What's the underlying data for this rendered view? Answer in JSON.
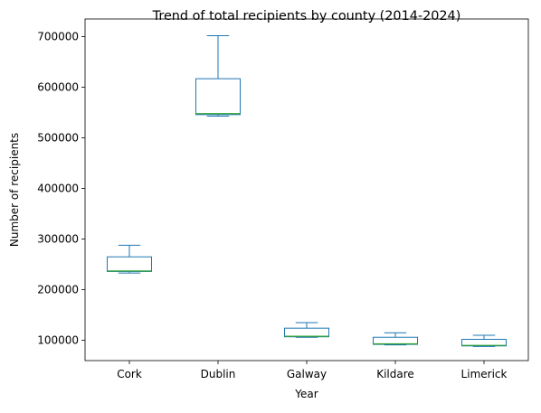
{
  "chart_data": {
    "type": "box",
    "title": "Trend of total recipients by county (2014-2024)",
    "xlabel": "Year",
    "ylabel": "Number of recipients",
    "categories": [
      "Cork",
      "Dublin",
      "Galway",
      "Kildare",
      "Limerick"
    ],
    "boxes": [
      {
        "name": "Cork",
        "min": 233000,
        "q1": 236000,
        "median": 237000,
        "q3": 265000,
        "max": 288000
      },
      {
        "name": "Dublin",
        "min": 543000,
        "q1": 546000,
        "median": 548000,
        "q3": 617000,
        "max": 702000
      },
      {
        "name": "Galway",
        "min": 106000,
        "q1": 107000,
        "median": 108000,
        "q3": 124000,
        "max": 135000
      },
      {
        "name": "Kildare",
        "min": 91000,
        "q1": 92000,
        "median": 93000,
        "q3": 106000,
        "max": 115000
      },
      {
        "name": "Limerick",
        "min": 88000,
        "q1": 89000,
        "median": 90000,
        "q3": 102000,
        "max": 110000
      }
    ],
    "yticks": [
      100000,
      200000,
      300000,
      400000,
      500000,
      600000,
      700000
    ],
    "ylim": [
      60000,
      735000
    ],
    "grid": false,
    "colors": {
      "box": "#1f77b4",
      "median": "#2ca02c"
    }
  }
}
